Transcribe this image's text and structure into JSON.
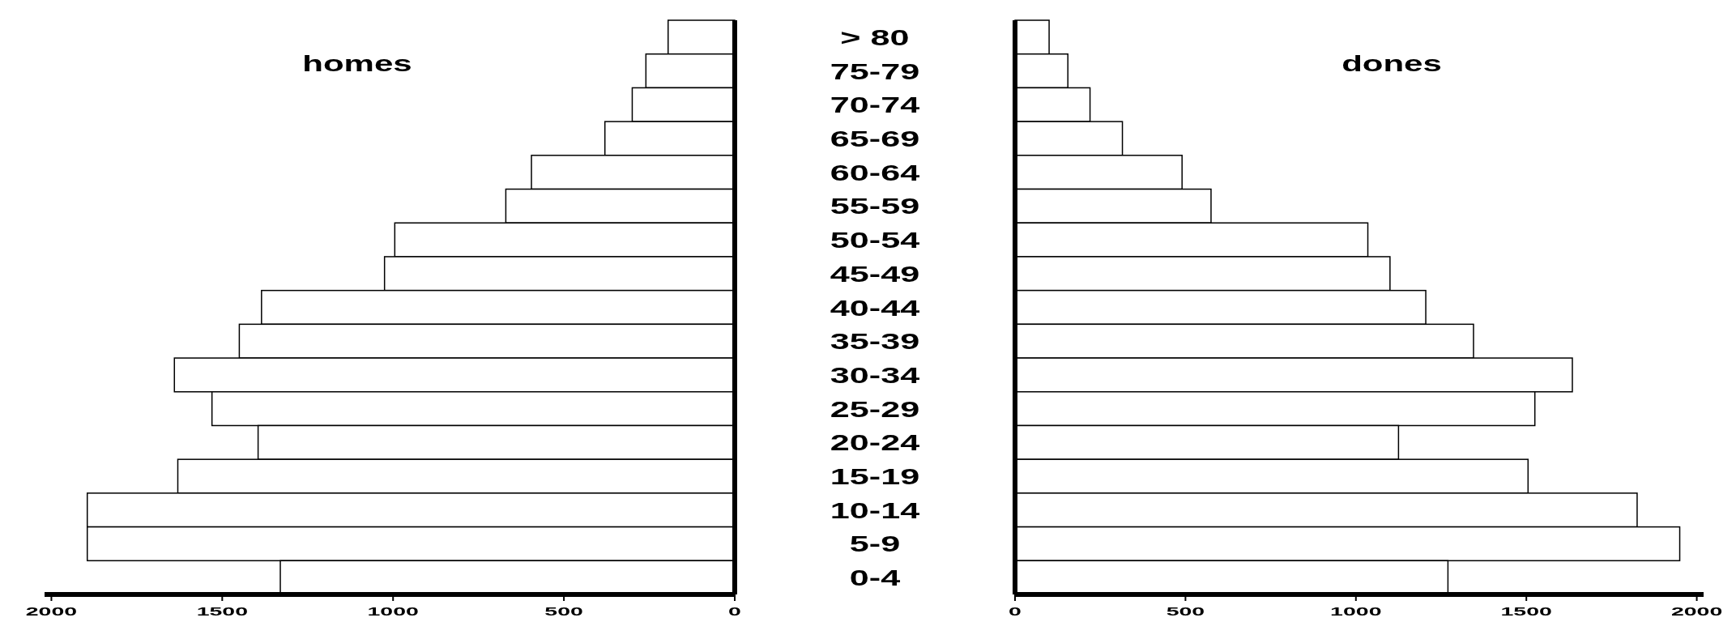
{
  "chart_data": [
    {
      "type": "bar",
      "orientation": "horizontal",
      "title": "homes",
      "categories": [
        "> 80",
        "75-79",
        "70-74",
        "65-69",
        "60-64",
        "55-59",
        "50-54",
        "45-49",
        "40-44",
        "35-39",
        "30-34",
        "25-29",
        "20-24",
        "15-19",
        "10-14",
        "5-9",
        "0-4"
      ],
      "series": [
        {
          "color": "#ffffff",
          "values": [
            195,
            260,
            300,
            380,
            595,
            670,
            995,
            1025,
            1385,
            1450,
            1640,
            1530,
            1395,
            1630,
            1895,
            1895,
            1330
          ]
        }
      ],
      "xlim": [
        2020,
        0
      ],
      "xticks": [
        2000,
        1500,
        1000,
        500,
        0
      ],
      "grid": false
    },
    {
      "type": "bar",
      "orientation": "horizontal",
      "title": "dones",
      "categories": [
        "> 80",
        "75-79",
        "70-74",
        "65-69",
        "60-64",
        "55-59",
        "50-54",
        "45-49",
        "40-44",
        "35-39",
        "30-34",
        "25-29",
        "20-24",
        "15-19",
        "10-14",
        "5-9",
        "0-4"
      ],
      "series": [
        {
          "color": "#ffffff",
          "values": [
            100,
            155,
            220,
            315,
            490,
            575,
            1035,
            1100,
            1205,
            1345,
            1635,
            1525,
            1125,
            1505,
            1825,
            1950,
            1270
          ]
        }
      ],
      "xlim": [
        0,
        2020
      ],
      "xticks": [
        0,
        500,
        1000,
        1500,
        2000
      ],
      "grid": false,
      "tick_labels": "x"
    }
  ]
}
